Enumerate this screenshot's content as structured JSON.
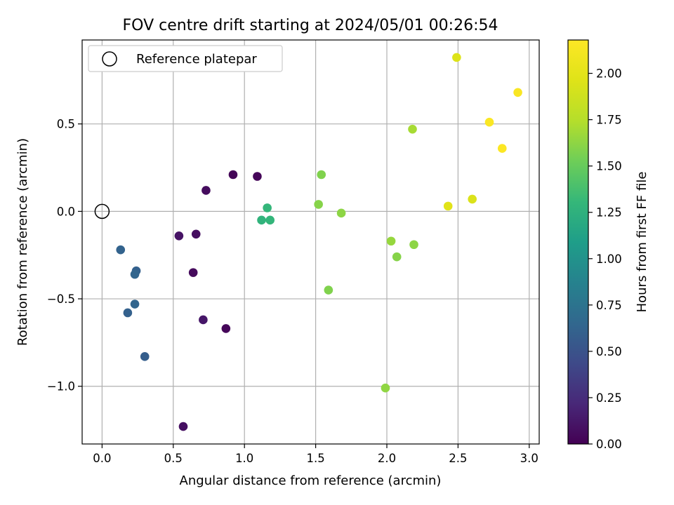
{
  "chart_data": {
    "type": "scatter",
    "title": "FOV centre drift starting at 2024/05/01 00:26:54",
    "xlabel": "Angular distance from reference (arcmin)",
    "ylabel": "Rotation from reference (arcmin)",
    "xlim": [
      -0.14,
      3.07
    ],
    "ylim": [
      -1.33,
      0.98
    ],
    "xticks": [
      0.0,
      0.5,
      1.0,
      1.5,
      2.0,
      2.5,
      3.0
    ],
    "xtick_labels": [
      "0.0",
      "0.5",
      "1.0",
      "1.5",
      "2.0",
      "2.5",
      "3.0"
    ],
    "yticks": [
      -1.0,
      -0.5,
      0.0,
      0.5
    ],
    "ytick_labels": [
      "−1.0",
      "−0.5",
      "0.0",
      "0.5"
    ],
    "grid": true,
    "legend": {
      "placement": "upper left",
      "entries": [
        "Reference platepar"
      ]
    },
    "reference_point": {
      "x": 0.0,
      "y": 0.0
    },
    "colorbar": {
      "label": "Hours from first FF file",
      "colormap": "viridis",
      "range": [
        0.0,
        2.18
      ],
      "ticks": [
        0.0,
        0.25,
        0.5,
        0.75,
        1.0,
        1.25,
        1.5,
        1.75,
        2.0
      ],
      "tick_labels": [
        "0.00",
        "0.25",
        "0.50",
        "0.75",
        "1.00",
        "1.25",
        "1.50",
        "1.75",
        "2.00"
      ]
    },
    "points": [
      {
        "x": 0.57,
        "y": -1.23,
        "hours": 0.08
      },
      {
        "x": 0.54,
        "y": -0.14,
        "hours": 0.1
      },
      {
        "x": 0.66,
        "y": -0.13,
        "hours": 0.07
      },
      {
        "x": 0.64,
        "y": -0.35,
        "hours": 0.05
      },
      {
        "x": 0.71,
        "y": -0.62,
        "hours": 0.12
      },
      {
        "x": 0.87,
        "y": -0.67,
        "hours": 0.03
      },
      {
        "x": 0.73,
        "y": 0.12,
        "hours": 0.06
      },
      {
        "x": 0.92,
        "y": 0.21,
        "hours": 0.02
      },
      {
        "x": 1.09,
        "y": 0.2,
        "hours": 0.03
      },
      {
        "x": 0.13,
        "y": -0.22,
        "hours": 0.62
      },
      {
        "x": 0.24,
        "y": -0.34,
        "hours": 0.6
      },
      {
        "x": 0.23,
        "y": -0.36,
        "hours": 0.63
      },
      {
        "x": 0.23,
        "y": -0.53,
        "hours": 0.63
      },
      {
        "x": 0.18,
        "y": -0.58,
        "hours": 0.6
      },
      {
        "x": 0.3,
        "y": -0.83,
        "hours": 0.58
      },
      {
        "x": 1.16,
        "y": 0.02,
        "hours": 1.3
      },
      {
        "x": 1.12,
        "y": -0.05,
        "hours": 1.27
      },
      {
        "x": 1.18,
        "y": -0.05,
        "hours": 1.29
      },
      {
        "x": 1.54,
        "y": 0.21,
        "hours": 1.58
      },
      {
        "x": 1.52,
        "y": 0.04,
        "hours": 1.6
      },
      {
        "x": 1.68,
        "y": -0.01,
        "hours": 1.62
      },
      {
        "x": 1.59,
        "y": -0.45,
        "hours": 1.58
      },
      {
        "x": 2.03,
        "y": -0.17,
        "hours": 1.65
      },
      {
        "x": 2.07,
        "y": -0.26,
        "hours": 1.6
      },
      {
        "x": 2.19,
        "y": -0.19,
        "hours": 1.62
      },
      {
        "x": 2.18,
        "y": 0.47,
        "hours": 1.7
      },
      {
        "x": 1.99,
        "y": -1.01,
        "hours": 1.63
      },
      {
        "x": 2.43,
        "y": 0.03,
        "hours": 1.98
      },
      {
        "x": 2.6,
        "y": 0.07,
        "hours": 1.94
      },
      {
        "x": 2.49,
        "y": 0.88,
        "hours": 1.95
      },
      {
        "x": 2.72,
        "y": 0.51,
        "hours": 2.16
      },
      {
        "x": 2.81,
        "y": 0.36,
        "hours": 2.17
      },
      {
        "x": 2.92,
        "y": 0.68,
        "hours": 2.15
      }
    ]
  }
}
